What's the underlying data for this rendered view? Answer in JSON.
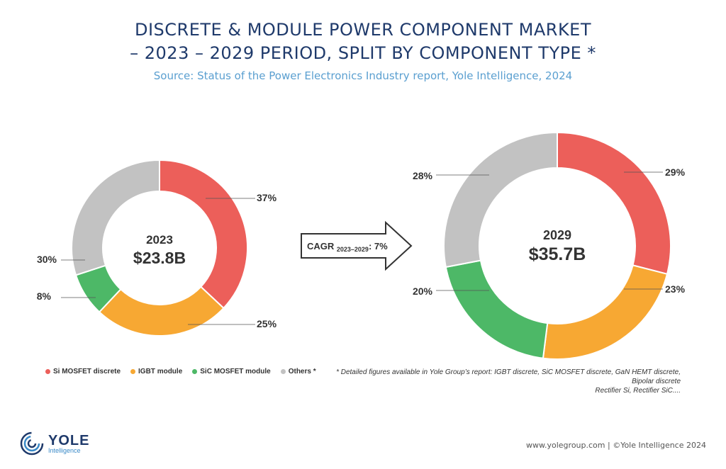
{
  "title_line1": "DISCRETE & MODULE POWER COMPONENT MARKET",
  "title_line2": "– 2023 – 2029 PERIOD, SPLIT BY COMPONENT TYPE *",
  "subtitle": "Source: Status of the Power Electronics Industry report, Yole Intelligence, 2024",
  "colors": {
    "si_mosfet": "#ec5f5a",
    "igbt": "#f7a833",
    "sic_mosfet": "#4db867",
    "others": "#c2c2c2",
    "title": "#1f3a6b"
  },
  "chart_data": [
    {
      "type": "pie",
      "year_label": "2023",
      "total_label": "$23.8B",
      "categories": [
        "Si MOSFET discrete",
        "IGBT module",
        "SiC MOSFET module",
        "Others"
      ],
      "values": [
        37,
        25,
        8,
        30
      ],
      "value_labels": [
        "37%",
        "25%",
        "8%",
        "30%"
      ]
    },
    {
      "type": "pie",
      "year_label": "2029",
      "total_label": "$35.7B",
      "categories": [
        "Si MOSFET discrete",
        "IGBT module",
        "SiC MOSFET module",
        "Others"
      ],
      "values": [
        29,
        23,
        20,
        28
      ],
      "value_labels": [
        "29%",
        "23%",
        "20%",
        "28%"
      ]
    }
  ],
  "cagr": {
    "prefix": "CAGR ",
    "sub": "2023–2029",
    "suffix": ": 7%"
  },
  "legend": [
    {
      "label": "Si  MOSFET discrete",
      "color": "#ec5f5a"
    },
    {
      "label": "IGBT module",
      "color": "#f7a833"
    },
    {
      "label": "SiC MOSFET module",
      "color": "#4db867"
    },
    {
      "label": "Others *",
      "color": "#c2c2c2"
    }
  ],
  "footnote": [
    "* Detailed figures available in Yole Group’s report: IGBT discrete, SiC MOSFET discrete, GaN HEMT discrete,",
    "Bipolar discrete",
    "Rectifier Si, Rectifier SiC...."
  ],
  "logo": {
    "name": "YOLE",
    "sub": "Intelligence"
  },
  "copyright": "www.yolegroup.com | ©Yole Intelligence 2024"
}
